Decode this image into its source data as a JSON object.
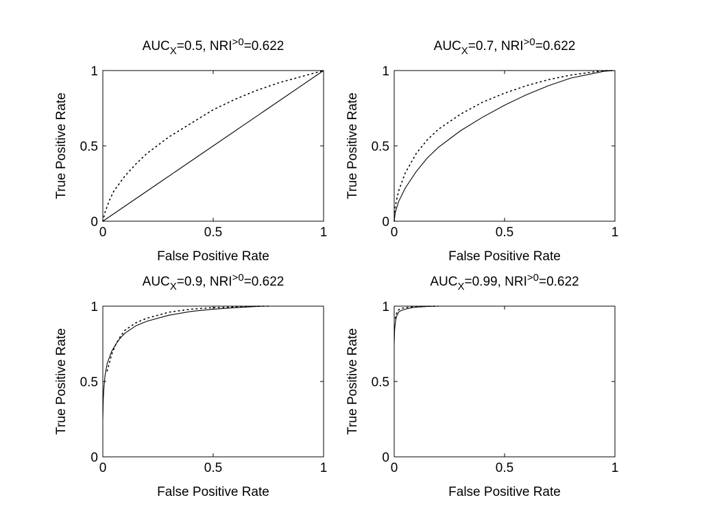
{
  "chart_data": [
    {
      "type": "line",
      "title_parts": {
        "a": "AUC",
        "a_sub": "X",
        "b": "=0.5, NRI",
        "b_sup": ">0",
        "c": "=0.622"
      },
      "xlabel": "False Positive Rate",
      "ylabel": "True Positive Rate",
      "xlim": [
        0,
        1
      ],
      "ylim": [
        0,
        1
      ],
      "x_ticks": [
        "0",
        "0.5",
        "1"
      ],
      "y_ticks": [
        "0",
        "0.5",
        "1"
      ],
      "grid": false,
      "legend": "none",
      "series": [
        {
          "style": "solid",
          "x": [
            0,
            0.25,
            0.5,
            0.75,
            1
          ],
          "y": [
            0,
            0.25,
            0.5,
            0.75,
            1
          ]
        },
        {
          "style": "dotted",
          "x": [
            0,
            0.01,
            0.03,
            0.05,
            0.1,
            0.15,
            0.2,
            0.3,
            0.4,
            0.5,
            0.6,
            0.7,
            0.8,
            0.9,
            1
          ],
          "y": [
            0,
            0.06,
            0.14,
            0.2,
            0.3,
            0.38,
            0.45,
            0.56,
            0.65,
            0.74,
            0.81,
            0.87,
            0.92,
            0.96,
            1
          ]
        }
      ]
    },
    {
      "type": "line",
      "title_parts": {
        "a": "AUC",
        "a_sub": "X",
        "b": "=0.7, NRI",
        "b_sup": ">0",
        "c": "=0.622"
      },
      "xlabel": "False Positive Rate",
      "ylabel": "True Positive Rate",
      "xlim": [
        0,
        1
      ],
      "ylim": [
        0,
        1
      ],
      "x_ticks": [
        "0",
        "0.5",
        "1"
      ],
      "y_ticks": [
        "0",
        "0.5",
        "1"
      ],
      "grid": false,
      "legend": "none",
      "series": [
        {
          "style": "solid",
          "x": [
            0,
            0.005,
            0.02,
            0.05,
            0.1,
            0.15,
            0.2,
            0.3,
            0.4,
            0.5,
            0.6,
            0.7,
            0.8,
            0.9,
            0.95,
            1
          ],
          "y": [
            0,
            0.06,
            0.13,
            0.22,
            0.33,
            0.42,
            0.49,
            0.6,
            0.69,
            0.77,
            0.84,
            0.9,
            0.95,
            0.98,
            0.995,
            1
          ]
        },
        {
          "style": "dotted",
          "x": [
            0,
            0.005,
            0.02,
            0.05,
            0.1,
            0.15,
            0.2,
            0.3,
            0.4,
            0.5,
            0.6,
            0.7,
            0.8,
            0.9,
            0.95,
            1
          ],
          "y": [
            0,
            0.1,
            0.2,
            0.32,
            0.45,
            0.54,
            0.61,
            0.71,
            0.79,
            0.85,
            0.9,
            0.94,
            0.97,
            0.99,
            1,
            1
          ]
        }
      ]
    },
    {
      "type": "line",
      "title_parts": {
        "a": "AUC",
        "a_sub": "X",
        "b": "=0.9, NRI",
        "b_sup": ">0",
        "c": "=0.622"
      },
      "xlabel": "False Positive Rate",
      "ylabel": "True Positive Rate",
      "xlim": [
        0,
        1
      ],
      "ylim": [
        0,
        1
      ],
      "x_ticks": [
        "0",
        "0.5",
        "1"
      ],
      "y_ticks": [
        "0",
        "0.5",
        "1"
      ],
      "grid": false,
      "legend": "none",
      "series": [
        {
          "style": "solid",
          "x": [
            0,
            0.002,
            0.005,
            0.01,
            0.02,
            0.04,
            0.06,
            0.08,
            0.1,
            0.15,
            0.2,
            0.3,
            0.4,
            0.5,
            0.6,
            0.7,
            0.75
          ],
          "y": [
            0.25,
            0.38,
            0.46,
            0.54,
            0.62,
            0.7,
            0.75,
            0.79,
            0.82,
            0.87,
            0.9,
            0.94,
            0.965,
            0.98,
            0.99,
            0.998,
            1
          ]
        },
        {
          "style": "dotted",
          "x": [
            0.02,
            0.04,
            0.06,
            0.08,
            0.1,
            0.15,
            0.2,
            0.3,
            0.4,
            0.5,
            0.6,
            0.7,
            0.75
          ],
          "y": [
            0.57,
            0.68,
            0.75,
            0.8,
            0.84,
            0.89,
            0.92,
            0.96,
            0.98,
            0.99,
            0.995,
            1,
            1
          ]
        }
      ]
    },
    {
      "type": "line",
      "title_parts": {
        "a": "AUC",
        "a_sub": "X",
        "b": "=0.99, NRI",
        "b_sup": ">0",
        "c": "=0.622"
      },
      "xlabel": "False Positive Rate",
      "ylabel": "True Positive Rate",
      "xlim": [
        0,
        1
      ],
      "ylim": [
        0,
        1
      ],
      "x_ticks": [
        "0",
        "0.5",
        "1"
      ],
      "y_ticks": [
        "0",
        "0.5",
        "1"
      ],
      "grid": false,
      "legend": "none",
      "series": [
        {
          "style": "solid",
          "x": [
            0,
            0.002,
            0.005,
            0.01,
            0.02,
            0.03,
            0.05,
            0.08,
            0.1,
            0.15,
            0.2
          ],
          "y": [
            0.75,
            0.84,
            0.89,
            0.93,
            0.96,
            0.97,
            0.98,
            0.99,
            0.993,
            0.998,
            1
          ]
        },
        {
          "style": "dotted",
          "x": [
            0.005,
            0.01,
            0.02,
            0.03,
            0.05,
            0.08,
            0.1,
            0.15,
            0.2
          ],
          "y": [
            0.92,
            0.95,
            0.975,
            0.985,
            0.99,
            0.995,
            0.997,
            0.999,
            1
          ]
        }
      ]
    }
  ]
}
